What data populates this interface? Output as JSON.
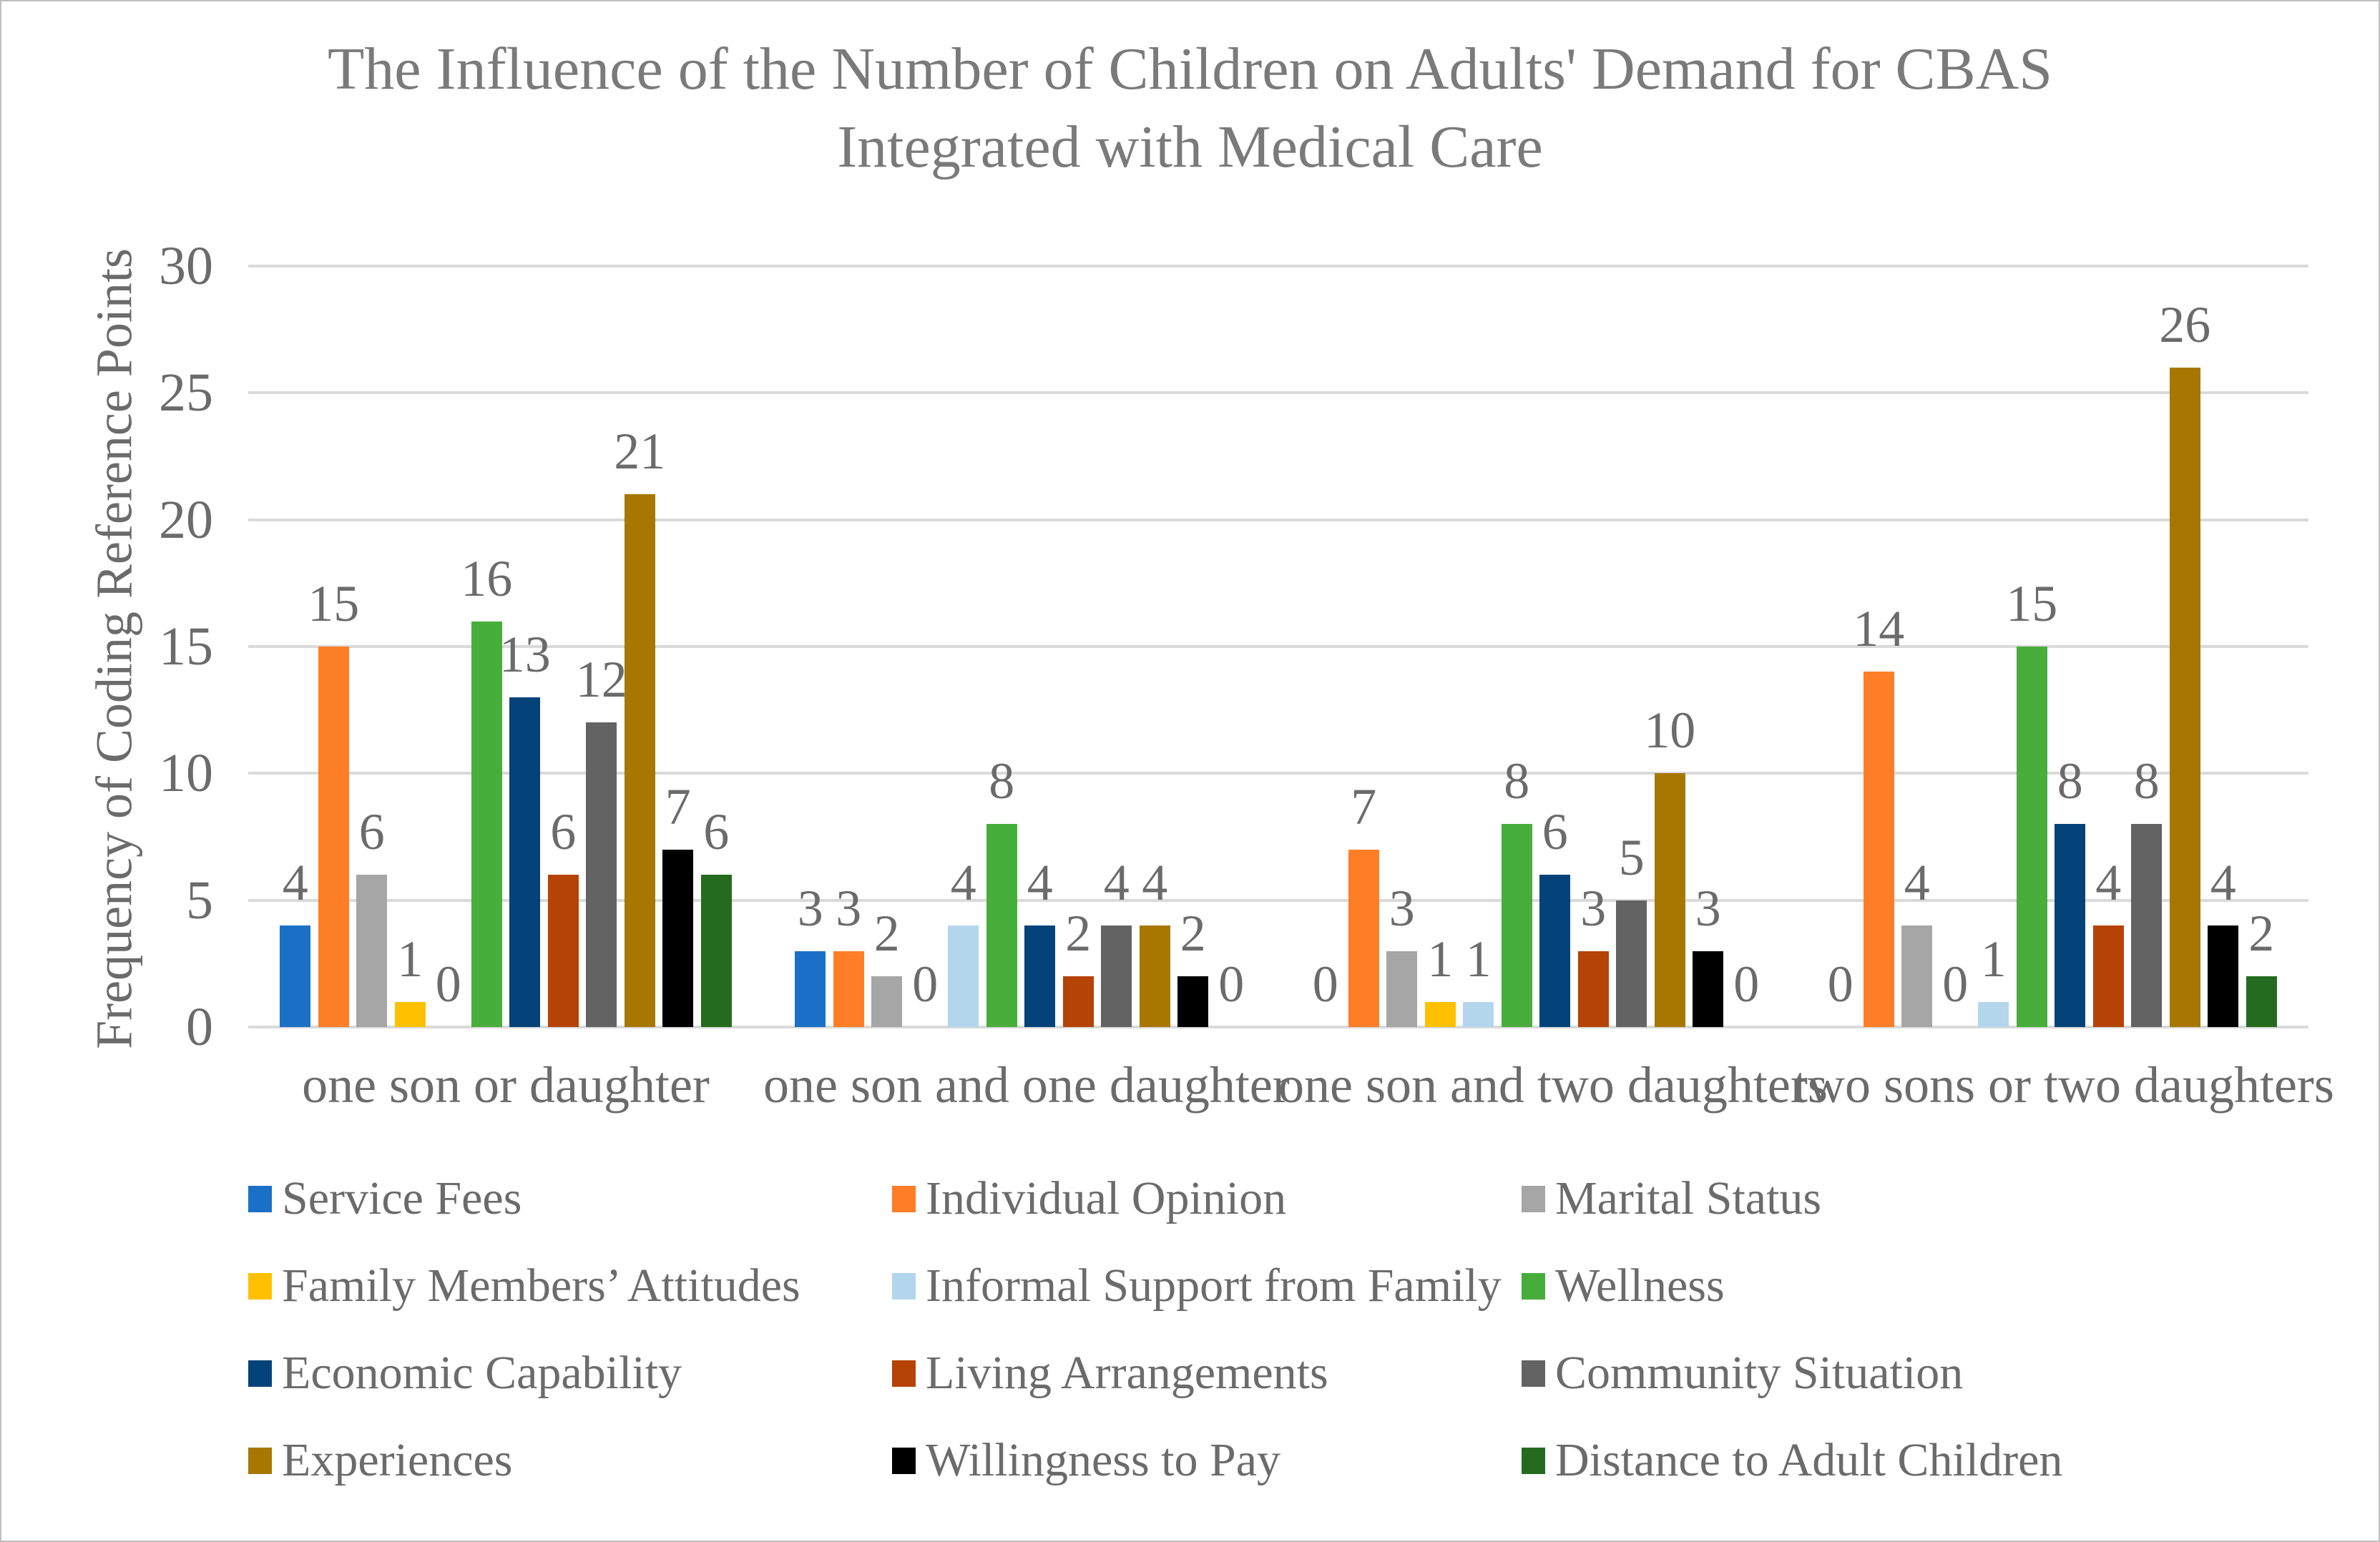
{
  "title": {
    "line1": "The Influence of the Number of Children on Adults' Demand for CBAS",
    "line2": "Integrated with Medical Care"
  },
  "chart_data": {
    "type": "bar",
    "title": "The Influence of the Number of Children on Adults' Demand for CBAS Integrated with Medical Care",
    "xlabel": "",
    "ylabel": "Frequency of Coding Reference Points",
    "ylim": [
      0,
      30
    ],
    "yticks": [
      0,
      5,
      10,
      15,
      20,
      25,
      30
    ],
    "grid": true,
    "value_labels": true,
    "legend_position": "bottom",
    "categories": [
      "one son or daughter",
      "one son and one daughter",
      "one son and two daughters",
      "two sons or two daughters"
    ],
    "series": [
      {
        "name": "Service Fees",
        "color": "#1A70C7",
        "values": [
          4,
          3,
          0,
          0
        ]
      },
      {
        "name": "Individual  Opinion",
        "color": "#FD7E26",
        "values": [
          15,
          3,
          7,
          14
        ]
      },
      {
        "name": "Marital Status",
        "color": "#A6A6A6",
        "values": [
          6,
          2,
          3,
          4
        ]
      },
      {
        "name": "Family Members’ Attitudes",
        "color": "#FFC000",
        "values": [
          1,
          0,
          1,
          0
        ]
      },
      {
        "name": "Informal Support from Family",
        "color": "#B3D6EC",
        "values": [
          0,
          4,
          1,
          1
        ]
      },
      {
        "name": "Wellness",
        "color": "#47AD3B",
        "values": [
          16,
          8,
          8,
          15
        ]
      },
      {
        "name": "Economic Capability",
        "color": "#04437A",
        "values": [
          13,
          4,
          6,
          8
        ]
      },
      {
        "name": "Living Arrangements",
        "color": "#B54305",
        "values": [
          6,
          2,
          3,
          4
        ]
      },
      {
        "name": "Community Situation",
        "color": "#636363",
        "values": [
          12,
          4,
          5,
          8
        ]
      },
      {
        "name": "Experiences",
        "color": "#A87700",
        "values": [
          21,
          4,
          10,
          26
        ]
      },
      {
        "name": "Willingness to Pay",
        "color": "#000000",
        "values": [
          7,
          2,
          3,
          4
        ]
      },
      {
        "name": "Distance to Adult Children",
        "color": "#256B1F",
        "values": [
          6,
          0,
          0,
          2
        ]
      }
    ]
  },
  "colors": {
    "background": "#FFFFFF",
    "border": "#BFBFBF",
    "gridline": "#DADADA",
    "label_text": "#6B6B6B",
    "title_text": "#7A7A7A"
  }
}
